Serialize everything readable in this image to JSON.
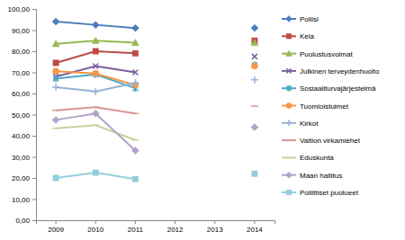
{
  "chart_data": {
    "type": "line",
    "categories": [
      "2009",
      "2010",
      "2011",
      "2012",
      "2013",
      "2014"
    ],
    "ylim": [
      0,
      100
    ],
    "yticks": [
      {
        "value": 0,
        "label": "0,00"
      },
      {
        "value": 10,
        "label": "10,00"
      },
      {
        "value": 20,
        "label": "20,00"
      },
      {
        "value": 30,
        "label": "30,00"
      },
      {
        "value": 40,
        "label": "40,00"
      },
      {
        "value": 50,
        "label": "50,00"
      },
      {
        "value": 60,
        "label": "60,00"
      },
      {
        "value": 70,
        "label": "70,00"
      },
      {
        "value": 80,
        "label": "80,00"
      },
      {
        "value": 90,
        "label": "90,00"
      },
      {
        "value": 100,
        "label": "100,00"
      }
    ],
    "grid": false,
    "legend": "right",
    "series": [
      {
        "name": "Poliisi",
        "color": "#4a7ebb",
        "marker": "diamond",
        "values": [
          94,
          92.5,
          91,
          null,
          null,
          91
        ]
      },
      {
        "name": "Kela",
        "color": "#be4b48",
        "marker": "square",
        "values": [
          74.5,
          80,
          79,
          null,
          null,
          85
        ]
      },
      {
        "name": "Puolustusvoimat",
        "color": "#98b954",
        "marker": "triangle",
        "values": [
          83.5,
          85,
          84,
          null,
          null,
          84
        ]
      },
      {
        "name": "Julkinen terveydenhuolto",
        "color": "#7d60a0",
        "marker": "x",
        "values": [
          68,
          73,
          70,
          null,
          null,
          77.5
        ]
      },
      {
        "name": "Sosiaaliturvajärjestelmä",
        "color": "#46aac5",
        "marker": "star",
        "values": [
          67,
          69,
          62.5,
          null,
          null,
          73.5
        ]
      },
      {
        "name": "Tuomioistuimet",
        "color": "#f79646",
        "marker": "circle",
        "values": [
          70.5,
          69.5,
          64,
          null,
          null,
          73
        ]
      },
      {
        "name": "Kirkot",
        "color": "#95b3d7",
        "marker": "plus",
        "values": [
          63,
          61,
          65,
          null,
          null,
          66.5
        ]
      },
      {
        "name": "Valtion virkamiehet",
        "color": "#d99694",
        "marker": "dash",
        "values": [
          52,
          53.5,
          50.5,
          null,
          null,
          54
        ]
      },
      {
        "name": "Eduskunta",
        "color": "#c3d69b",
        "marker": "dash",
        "values": [
          43.5,
          45,
          38,
          null,
          null,
          44
        ]
      },
      {
        "name": "Maan hallitus",
        "color": "#b3a2c7",
        "marker": "diamond",
        "values": [
          47.5,
          50.5,
          33,
          null,
          null,
          44
        ]
      },
      {
        "name": "Poliittiset puolueet",
        "color": "#93cddd",
        "marker": "square",
        "values": [
          20,
          22.5,
          19.5,
          null,
          null,
          22
        ]
      }
    ]
  }
}
